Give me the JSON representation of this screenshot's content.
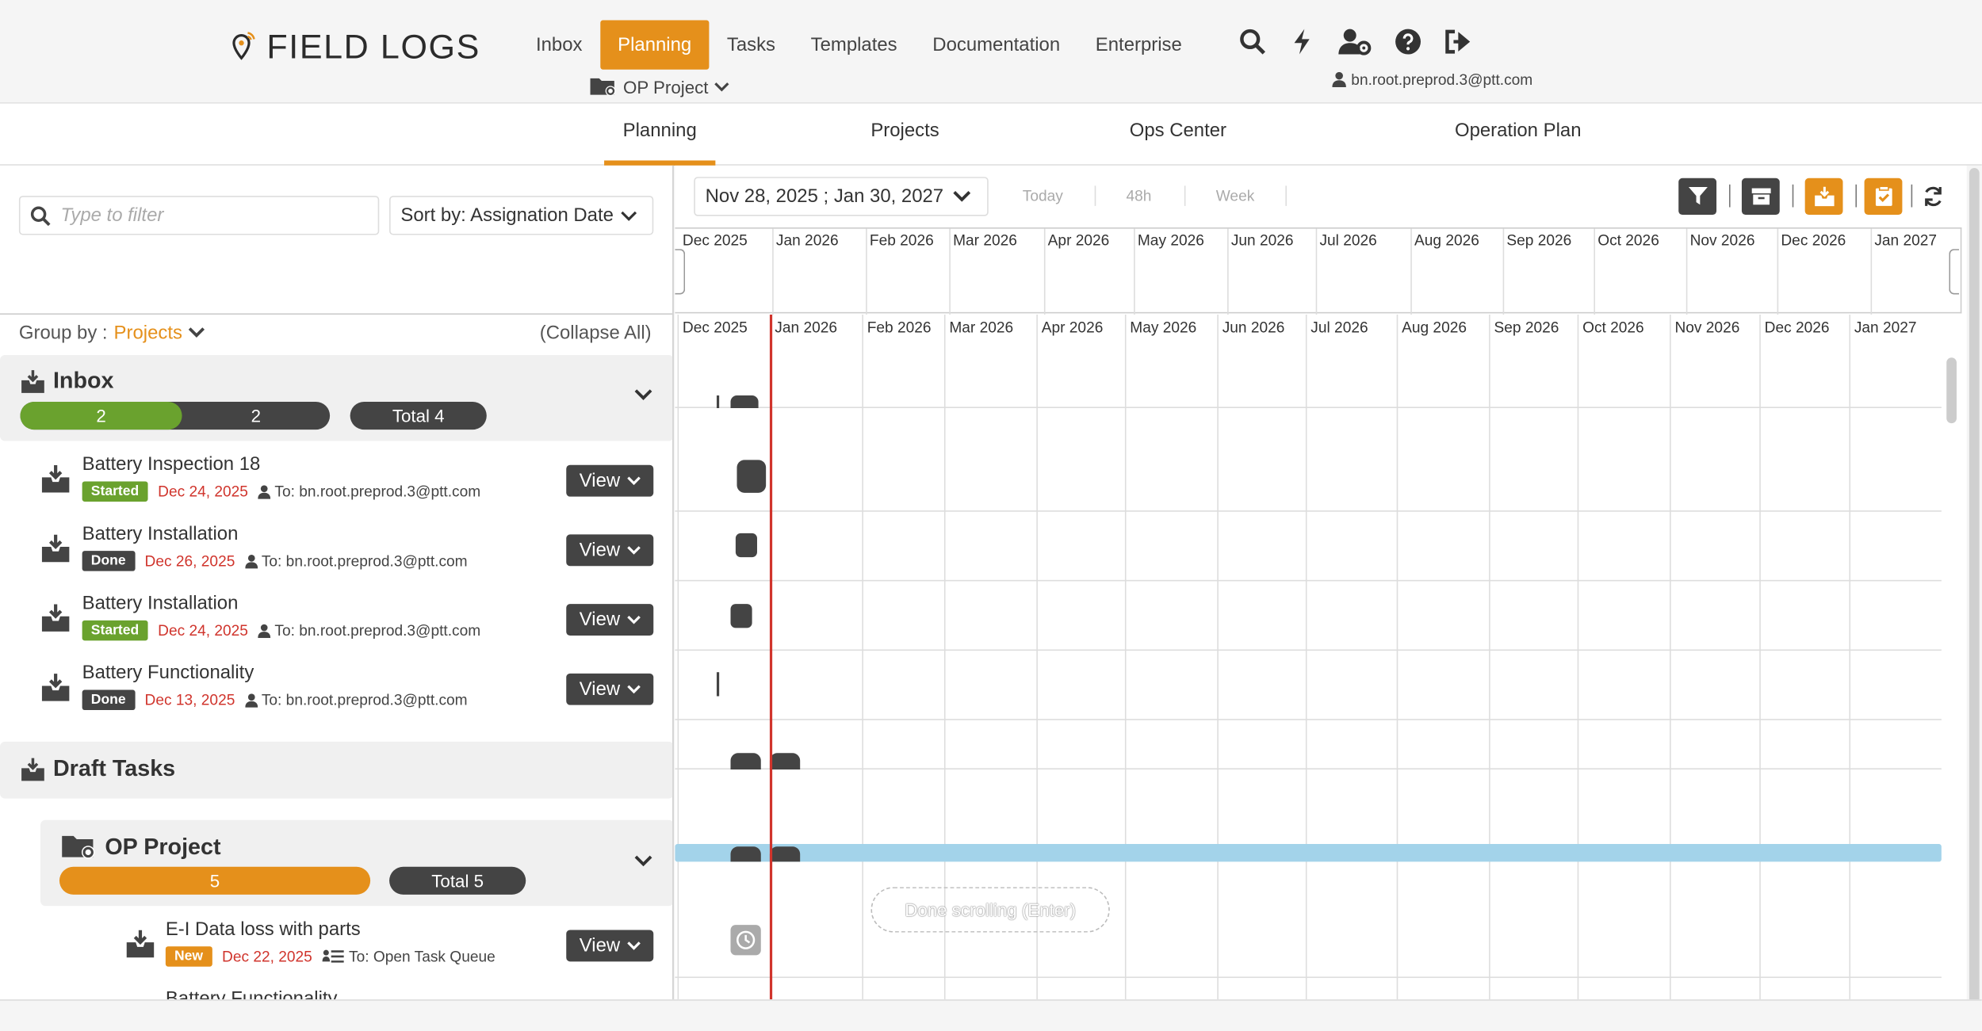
{
  "app": {
    "logo_text": "FIELD LOGS"
  },
  "nav": {
    "items": [
      "Inbox",
      "Planning",
      "Tasks",
      "Templates",
      "Documentation",
      "Enterprise"
    ],
    "active": "Planning"
  },
  "project_select": "OP Project",
  "user_email": "bn.root.preprod.3@ptt.com",
  "subtabs": [
    "Planning",
    "Projects",
    "Ops Center",
    "Operation Plan"
  ],
  "filter": {
    "placeholder": "Type to filter"
  },
  "sort_label": "Sort by: Assignation Date",
  "group_by": {
    "label": "Group by :",
    "value": "Projects"
  },
  "collapse_all": "(Collapse All)",
  "inbox": {
    "title": "Inbox",
    "count_started": "2",
    "count_done": "2",
    "total": "Total 4"
  },
  "draft": {
    "title": "Draft Tasks"
  },
  "op_project": {
    "title": "OP Project",
    "count": "5",
    "total": "Total 5"
  },
  "tasks": [
    {
      "title": "Battery Inspection 18",
      "status": "Started",
      "date": "Dec 24, 2025",
      "to": "To: bn.root.preprod.3@ptt.com"
    },
    {
      "title": "Battery Installation",
      "status": "Done",
      "date": "Dec 26, 2025",
      "to": "To: bn.root.preprod.3@ptt.com"
    },
    {
      "title": "Battery Installation",
      "status": "Started",
      "date": "Dec 24, 2025",
      "to": "To: bn.root.preprod.3@ptt.com"
    },
    {
      "title": "Battery Functionality",
      "status": "Done",
      "date": "Dec 13, 2025",
      "to": "To: bn.root.preprod.3@ptt.com"
    }
  ],
  "op_tasks": [
    {
      "title": "E-I Data loss with parts",
      "status": "New",
      "date": "Dec 22, 2025",
      "to": "To: Open Task Queue"
    },
    {
      "title": "Battery Functionality"
    }
  ],
  "view_label": "View",
  "timeline": {
    "range": "Nov 28, 2025 ; Jan 30, 2027",
    "quick": [
      "Today",
      "48h",
      "Week"
    ],
    "months": [
      "Dec 2025",
      "Jan 2026",
      "Feb 2026",
      "Mar 2026",
      "Apr 2026",
      "May 2026",
      "Jun 2026",
      "Jul 2026",
      "Aug 2026",
      "Sep 2026",
      "Oct 2026",
      "Nov 2026",
      "Dec 2026",
      "Jan 2027"
    ],
    "done_scrolling": "Done scrolling (Enter)"
  },
  "colors": {
    "accent": "#e5901b",
    "started": "#6aa22e",
    "dark": "#444444",
    "today_line": "#d0342c",
    "bar_blue": "#a3d3ea"
  },
  "icons": [
    "search-icon",
    "bolt-icon",
    "user-gear-icon",
    "help-icon",
    "logout-icon",
    "filter-icon",
    "archive-icon",
    "inbox-icon",
    "clipboard-check-icon",
    "refresh-icon"
  ]
}
